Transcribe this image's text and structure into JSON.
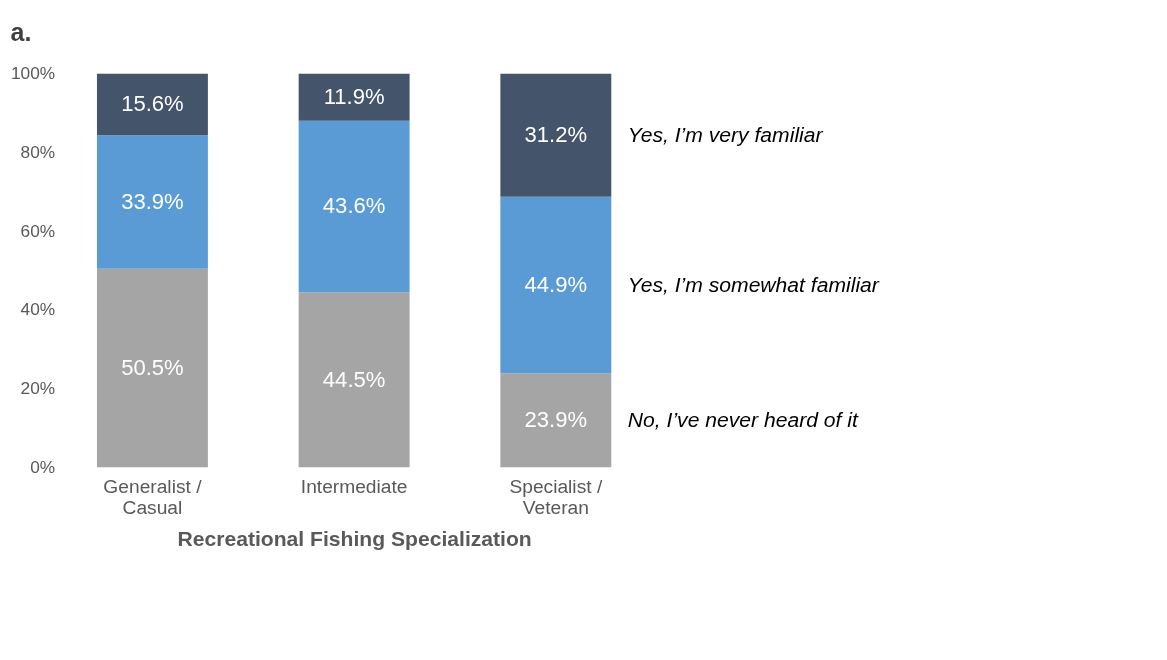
{
  "chart_data": {
    "type": "bar",
    "title": "a.",
    "xlabel": "Recreational Fishing Specialization",
    "categories": [
      "Generalist /\nCasual",
      "Intermediate",
      "Specialist /\nVeteran"
    ],
    "stacked": true,
    "grid": false,
    "ylim": [
      0,
      100
    ],
    "yticks": [
      {
        "value": 0,
        "label": "0%"
      },
      {
        "value": 20,
        "label": "20%"
      },
      {
        "value": 40,
        "label": "40%"
      },
      {
        "value": 60,
        "label": "60%"
      },
      {
        "value": 80,
        "label": "80%"
      },
      {
        "value": 100,
        "label": "100%"
      }
    ],
    "series": [
      {
        "name": "No, I’ve never heard of it",
        "color": "#a5a5a5",
        "values": [
          50.5,
          44.5,
          23.9
        ],
        "value_labels": [
          "50.5%",
          "44.5%",
          "23.9%"
        ]
      },
      {
        "name": "Yes, I’m somewhat familiar",
        "color": "#5b9bd5",
        "values": [
          33.9,
          43.6,
          44.9
        ],
        "value_labels": [
          "33.9%",
          "43.6%",
          "44.9%"
        ]
      },
      {
        "name": "Yes, I’m very familiar",
        "color": "#44546a",
        "values": [
          15.6,
          11.9,
          31.2
        ],
        "value_labels": [
          "15.6%",
          "11.9%",
          "31.2%"
        ]
      }
    ]
  }
}
